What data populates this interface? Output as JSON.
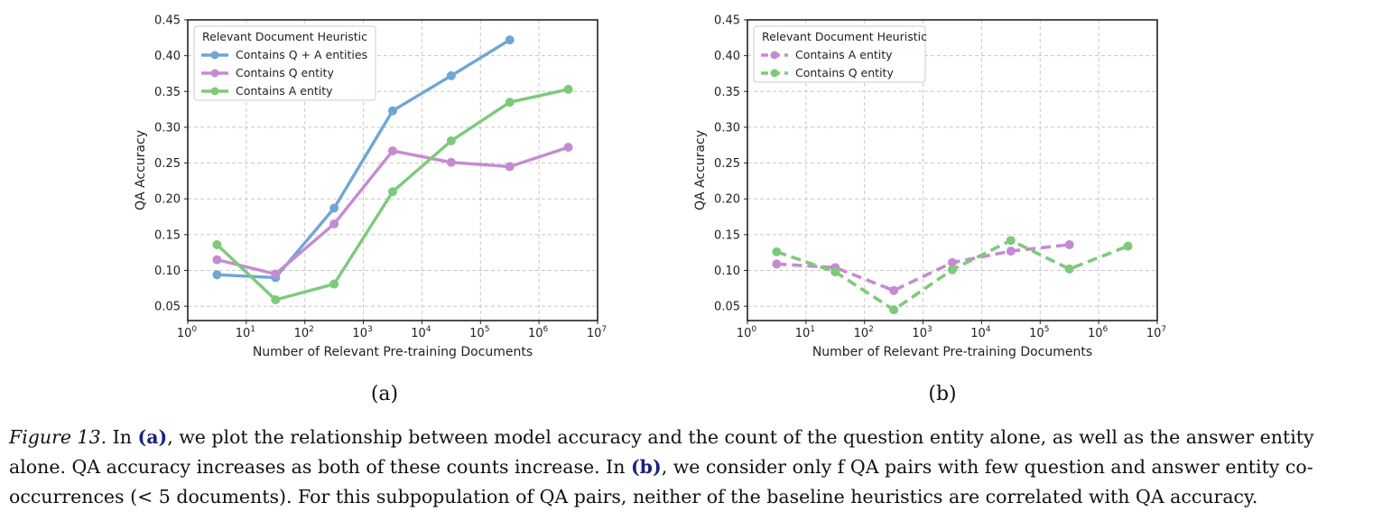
{
  "chart_data": [
    {
      "type": "line",
      "panel_label": "(a)",
      "xlabel": "Number of Relevant Pre-training Documents",
      "ylabel": "QA Accuracy",
      "xscale": "log",
      "xlim": [
        1,
        10000000
      ],
      "ylim": [
        0.03,
        0.45
      ],
      "xticks": [
        {
          "base": "10",
          "exp": "0"
        },
        {
          "base": "10",
          "exp": "1"
        },
        {
          "base": "10",
          "exp": "2"
        },
        {
          "base": "10",
          "exp": "3"
        },
        {
          "base": "10",
          "exp": "4"
        },
        {
          "base": "10",
          "exp": "5"
        },
        {
          "base": "10",
          "exp": "6"
        },
        {
          "base": "10",
          "exp": "7"
        }
      ],
      "yticks": [
        "0.05",
        "0.10",
        "0.15",
        "0.20",
        "0.25",
        "0.30",
        "0.35",
        "0.40",
        "0.45"
      ],
      "grid": true,
      "legend_title": "Relevant Document Heuristic",
      "legend_position": "top-left",
      "series": [
        {
          "name": "Contains Q + A entities",
          "color": "#6fa6d6",
          "dashed": false,
          "x": [
            3.16,
            31.6,
            316,
            3160,
            31600,
            316000
          ],
          "y": [
            0.094,
            0.09,
            0.187,
            0.323,
            0.372,
            0.422
          ]
        },
        {
          "name": "Contains Q entity",
          "color": "#c58bd2",
          "dashed": false,
          "x": [
            3.16,
            31.6,
            316,
            3160,
            31600,
            316000,
            3160000
          ],
          "y": [
            0.115,
            0.095,
            0.165,
            0.267,
            0.251,
            0.245,
            0.272
          ]
        },
        {
          "name": "Contains A entity",
          "color": "#7dca7b",
          "dashed": false,
          "x": [
            3.16,
            31.6,
            316,
            3160,
            31600,
            316000,
            3160000
          ],
          "y": [
            0.136,
            0.059,
            0.081,
            0.21,
            0.281,
            0.335,
            0.353
          ]
        }
      ]
    },
    {
      "type": "line",
      "panel_label": "(b)",
      "xlabel": "Number of Relevant Pre-training Documents",
      "ylabel": "QA Accuracy",
      "xscale": "log",
      "xlim": [
        1,
        10000000
      ],
      "ylim": [
        0.03,
        0.45
      ],
      "xticks": [
        {
          "base": "10",
          "exp": "0"
        },
        {
          "base": "10",
          "exp": "1"
        },
        {
          "base": "10",
          "exp": "2"
        },
        {
          "base": "10",
          "exp": "3"
        },
        {
          "base": "10",
          "exp": "4"
        },
        {
          "base": "10",
          "exp": "5"
        },
        {
          "base": "10",
          "exp": "6"
        },
        {
          "base": "10",
          "exp": "7"
        }
      ],
      "yticks": [
        "0.05",
        "0.10",
        "0.15",
        "0.20",
        "0.25",
        "0.30",
        "0.35",
        "0.40",
        "0.45"
      ],
      "grid": true,
      "legend_title": "Relevant Document Heuristic",
      "legend_position": "top-left",
      "series": [
        {
          "name": "Contains A entity",
          "color": "#c58bd2",
          "dashed": true,
          "x": [
            3.16,
            31.6,
            316,
            3160,
            31600,
            316000
          ],
          "y": [
            0.109,
            0.104,
            0.072,
            0.111,
            0.127,
            0.136
          ]
        },
        {
          "name": "Contains Q entity",
          "color": "#7dca7b",
          "dashed": true,
          "x": [
            3.16,
            31.6,
            316,
            3160,
            31600,
            316000,
            3160000
          ],
          "y": [
            0.126,
            0.098,
            0.045,
            0.101,
            0.142,
            0.102,
            0.134
          ]
        }
      ]
    }
  ],
  "caption": {
    "figure_label": "Figure 13.",
    "part1": " In ",
    "ref_a": "(a)",
    "part2": ", we plot the relationship between model accuracy and the count of the question entity alone, as well as the answer entity alone. QA accuracy increases as both of these counts increase. In ",
    "ref_b": "(b)",
    "part3": ", we consider only f QA pairs with few question and answer entity co-occurrences (< 5 documents). For this subpopulation of QA pairs, neither of the baseline heuristics are correlated with QA accuracy."
  }
}
